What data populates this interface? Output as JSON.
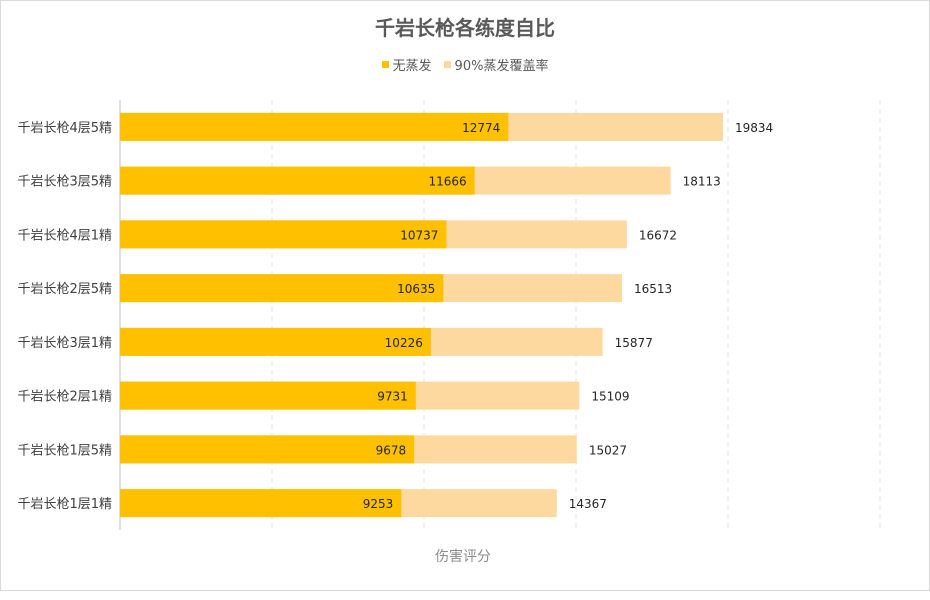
{
  "chart_data": {
    "type": "bar",
    "orientation": "horizontal",
    "layout": "overlapped",
    "title": "千岩长枪各练度自比",
    "xlabel": "伤害评分",
    "ylabel": "",
    "xlim": [
      0,
      25000
    ],
    "grid": "vertical-dashed",
    "legend_position": "top",
    "categories": [
      "千岩长枪4层5精",
      "千岩长枪3层5精",
      "千岩长枪4层1精",
      "千岩长枪2层5精",
      "千岩长枪3层1精",
      "千岩长枪2层1精",
      "千岩长枪1层5精",
      "千岩长枪1层1精"
    ],
    "series": [
      {
        "name": "无蒸发",
        "color": "#FFC000",
        "values": [
          12774,
          11666,
          10737,
          10635,
          10226,
          9731,
          9678,
          9253
        ]
      },
      {
        "name": "90%蒸发覆盖率",
        "color": "#FDD9A0",
        "values": [
          19834,
          18113,
          16672,
          16513,
          15877,
          15109,
          15027,
          14367
        ]
      }
    ]
  }
}
